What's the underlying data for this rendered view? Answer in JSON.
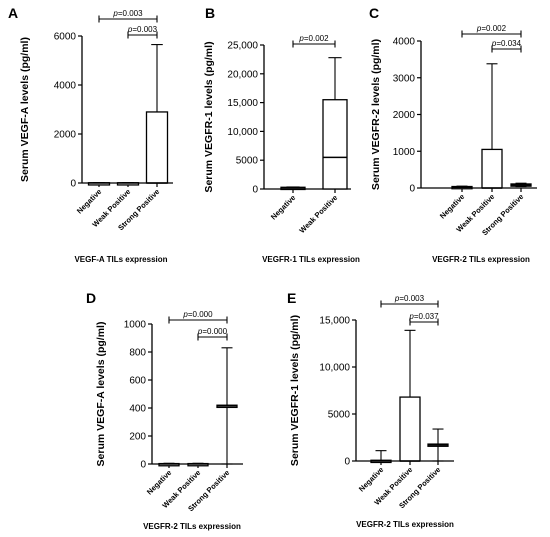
{
  "chart_data": [
    {
      "panel": "A",
      "type": "box",
      "ylabel": "Serum VEGF-A levels (pg/ml)",
      "xlabel": "VEGF-A TILs expression",
      "ylim": [
        0,
        6000
      ],
      "yticks": [
        0,
        2000,
        4000,
        6000
      ],
      "ytick_labels": [
        "0",
        "2000",
        "4000",
        "6000"
      ],
      "categories": [
        "Negative",
        "Weak Positive",
        "Strong Positive"
      ],
      "boxes": [
        {
          "min": 0,
          "q1": 0,
          "median": 0,
          "q3": 10,
          "max": 15
        },
        {
          "min": 0,
          "q1": 0,
          "median": 0,
          "q3": 10,
          "max": 15
        },
        {
          "min": 0,
          "q1": 0,
          "median": 0,
          "q3": 2900,
          "max": 5650
        }
      ],
      "comparisons": [
        {
          "from": 0,
          "to": 2,
          "prefix": "p",
          "text": "=0.003"
        },
        {
          "from": 1,
          "to": 2,
          "prefix": "p",
          "text": "=0.003"
        }
      ]
    },
    {
      "panel": "B",
      "type": "box",
      "ylabel": "Serum VEGFR-1 levels (pg/ml)",
      "xlabel": "VEGFR-1 TILs expression",
      "ylim": [
        0,
        25000
      ],
      "yticks": [
        0,
        5000,
        10000,
        15000,
        20000,
        25000
      ],
      "ytick_labels": [
        "0",
        "5000",
        "10,000",
        "15,000",
        "20,000",
        "25,000"
      ],
      "categories": [
        "Negative",
        "Weak Positive"
      ],
      "boxes": [
        {
          "min": 0,
          "q1": 0,
          "median": 150,
          "q3": 300,
          "max": 350
        },
        {
          "min": 0,
          "q1": 0,
          "median": 5500,
          "q3": 15500,
          "max": 22800
        }
      ],
      "comparisons": [
        {
          "from": 0,
          "to": 1,
          "prefix": "p",
          "text": "=0.002"
        }
      ]
    },
    {
      "panel": "C",
      "type": "box",
      "ylabel": "Serum VEGFR-2 levels (pg/ml)",
      "xlabel": "VEGFR-2 TILs expression",
      "ylim": [
        0,
        4000
      ],
      "yticks": [
        0,
        1000,
        2000,
        3000,
        4000
      ],
      "ytick_labels": [
        "0",
        "1000",
        "2000",
        "3000",
        "4000"
      ],
      "categories": [
        "Negative",
        "Weak Positive",
        "Strong Positive"
      ],
      "boxes": [
        {
          "min": 0,
          "q1": 0,
          "median": 20,
          "q3": 40,
          "max": 50
        },
        {
          "min": 0,
          "q1": 0,
          "median": 0,
          "q3": 1050,
          "max": 3380
        },
        {
          "min": 40,
          "q1": 50,
          "median": 80,
          "q3": 110,
          "max": 130
        }
      ],
      "comparisons": [
        {
          "from": 0,
          "to": 2,
          "prefix": "p",
          "text": "=0.002"
        },
        {
          "from": 1,
          "to": 2,
          "prefix": "p",
          "text": "=0.034"
        }
      ]
    },
    {
      "panel": "D",
      "type": "box",
      "ylabel": "Serum VEGF-A levels (pg/ml)",
      "xlabel": "VEGFR-2 TILs expression",
      "ylim": [
        0,
        1000
      ],
      "yticks": [
        0,
        200,
        400,
        600,
        800,
        1000
      ],
      "ytick_labels": [
        "0",
        "200",
        "400",
        "600",
        "800",
        "1000"
      ],
      "categories": [
        "Negative",
        "Weak Positive",
        "Strong Positive"
      ],
      "boxes": [
        {
          "min": 0,
          "q1": 0,
          "median": 0,
          "q3": 3,
          "max": 5
        },
        {
          "min": 0,
          "q1": 0,
          "median": 0,
          "q3": 3,
          "max": 5
        },
        {
          "min": 0,
          "q1": 415,
          "median": 415,
          "q3": 420,
          "max": 830
        }
      ],
      "comparisons": [
        {
          "from": 0,
          "to": 2,
          "prefix": "p",
          "text": "=0.000"
        },
        {
          "from": 1,
          "to": 2,
          "prefix": "p",
          "text": "=0.000"
        }
      ]
    },
    {
      "panel": "E",
      "type": "box",
      "ylabel": "Serum VEGFR-1 levels (pg/ml)",
      "xlabel": "VEGFR-2 TILs expression",
      "ylim": [
        0,
        15000
      ],
      "yticks": [
        0,
        5000,
        10000,
        15000
      ],
      "ytick_labels": [
        "0",
        "5000",
        "10,000",
        "15,000"
      ],
      "categories": [
        "Negative",
        "Weak Positive",
        "Strong Positive"
      ],
      "boxes": [
        {
          "min": 0,
          "q1": 0,
          "median": 0,
          "q3": 80,
          "max": 1100
        },
        {
          "min": 0,
          "q1": 0,
          "median": 0,
          "q3": 6800,
          "max": 13900
        },
        {
          "min": 0,
          "q1": 1600,
          "median": 1700,
          "q3": 1800,
          "max": 3400
        }
      ],
      "comparisons": [
        {
          "from": 0,
          "to": 2,
          "prefix": "p",
          "text": "=0.003"
        },
        {
          "from": 1,
          "to": 2,
          "prefix": "p",
          "text": "=0.037"
        }
      ]
    }
  ]
}
